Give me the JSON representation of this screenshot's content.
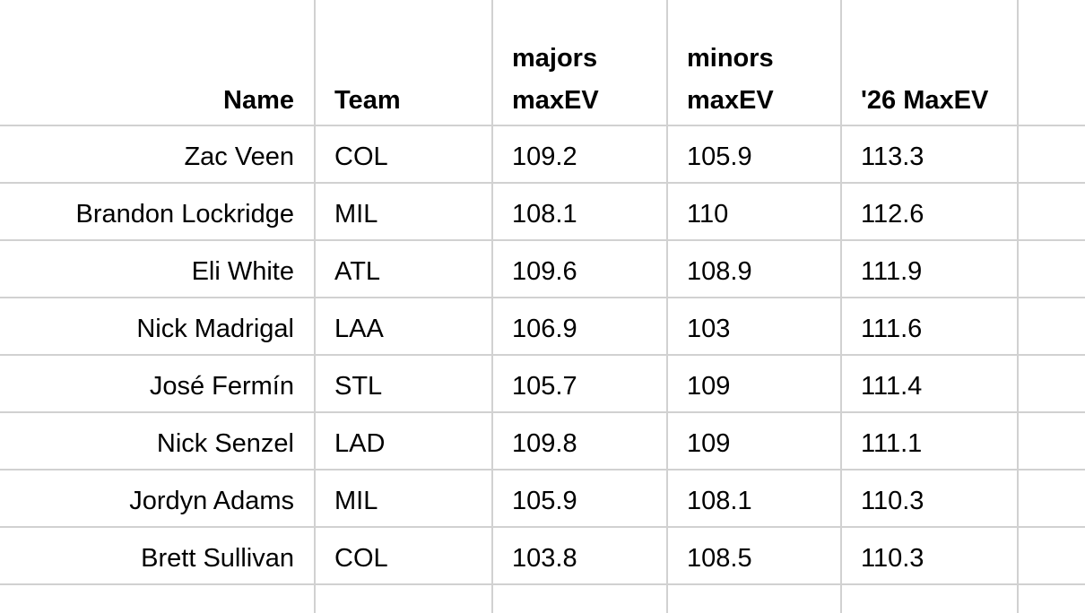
{
  "table": {
    "columns": [
      {
        "label": "Name",
        "align": "right"
      },
      {
        "label": "Team",
        "align": "left"
      },
      {
        "label": "majors maxEV",
        "align": "left"
      },
      {
        "label": "minors maxEV",
        "align": "left"
      },
      {
        "label": "'26 MaxEV",
        "align": "left"
      },
      {
        "label": "",
        "align": "left"
      }
    ],
    "rows": [
      {
        "name": "Zac Veen",
        "team": "COL",
        "majors_maxev": "109.2",
        "minors_maxev": "105.9",
        "maxev_26": "113.3"
      },
      {
        "name": "Brandon Lockridge",
        "team": "MIL",
        "majors_maxev": "108.1",
        "minors_maxev": "110",
        "maxev_26": "112.6"
      },
      {
        "name": "Eli White",
        "team": "ATL",
        "majors_maxev": "109.6",
        "minors_maxev": "108.9",
        "maxev_26": "111.9"
      },
      {
        "name": "Nick Madrigal",
        "team": "LAA",
        "majors_maxev": "106.9",
        "minors_maxev": "103",
        "maxev_26": "111.6"
      },
      {
        "name": "José Fermín",
        "team": "STL",
        "majors_maxev": "105.7",
        "minors_maxev": "109",
        "maxev_26": "111.4"
      },
      {
        "name": "Nick Senzel",
        "team": "LAD",
        "majors_maxev": "109.8",
        "minors_maxev": "109",
        "maxev_26": "111.1"
      },
      {
        "name": "Jordyn Adams",
        "team": "MIL",
        "majors_maxev": "105.9",
        "minors_maxev": "108.1",
        "maxev_26": "110.3"
      },
      {
        "name": "Brett Sullivan",
        "team": "COL",
        "majors_maxev": "103.8",
        "minors_maxev": "108.5",
        "maxev_26": "110.3"
      }
    ]
  },
  "colors": {
    "gridline": "#d1d1d1",
    "text": "#000000",
    "background": "#ffffff"
  }
}
